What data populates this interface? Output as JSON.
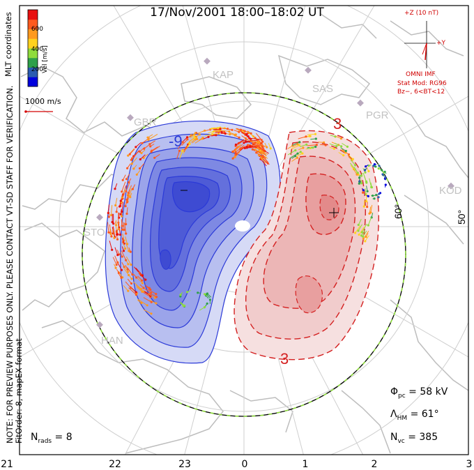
{
  "title": "17/Nov/2001  18:00–18:02  UT",
  "side_note": {
    "line1": "NOTE: FOR PREVIEW PURPOSES ONLY. PLEASE CONTACT VT-SD STAFF FOR VERIFICATION.",
    "line2": "FitOrder: 8, mapEX format",
    "coords": "MLT coordinates"
  },
  "colorbar": {
    "label": "Vel [m/s]",
    "ticks": [
      "600",
      "400",
      "200"
    ],
    "colors": [
      "#0000dd",
      "#2a5bb0",
      "#2ea04a",
      "#8fdc3c",
      "#ffd21e",
      "#ff9a1e",
      "#ff5a1e",
      "#e81010"
    ]
  },
  "reference_vector": "1000 m/s",
  "imf": {
    "z_label": "+Z (10 nT)",
    "y_label": "+Y",
    "source": "OMNI IMF",
    "model": "Stat Mod: RG96",
    "condition": "Bz−, 6<BT<12"
  },
  "stats": {
    "phi_pc_symbol": "Φ",
    "phi_pc_sub": "pc",
    "phi_pc_value": " = 58 kV",
    "lambda_hm_symbol": "Λ",
    "lambda_hm_sub": "HM",
    "lambda_hm_value": " = 61°",
    "n_vc_symbol": "N",
    "n_vc_sub": "vc",
    "n_vc_value": " = 385",
    "n_rads_symbol": "N",
    "n_rads_sub": "rads",
    "n_rads_value": " = 8"
  },
  "mlt_labels": [
    "21",
    "22",
    "23",
    "0",
    "1",
    "2",
    "3"
  ],
  "latitude_labels": [
    "60°",
    "50°"
  ],
  "radar_sites": [
    "KAP",
    "SAS",
    "PGR",
    "KOD",
    "GBR",
    "STO",
    "HAN"
  ],
  "contours": {
    "negative_label": "-9",
    "positive_label": "3",
    "positive_label_bottom": "3"
  },
  "colors": {
    "negative_cell": "#2b3ad8",
    "positive_cell": "#d42020",
    "land": "#bdbdbd",
    "hm_boundary": "#8edc3c"
  }
}
